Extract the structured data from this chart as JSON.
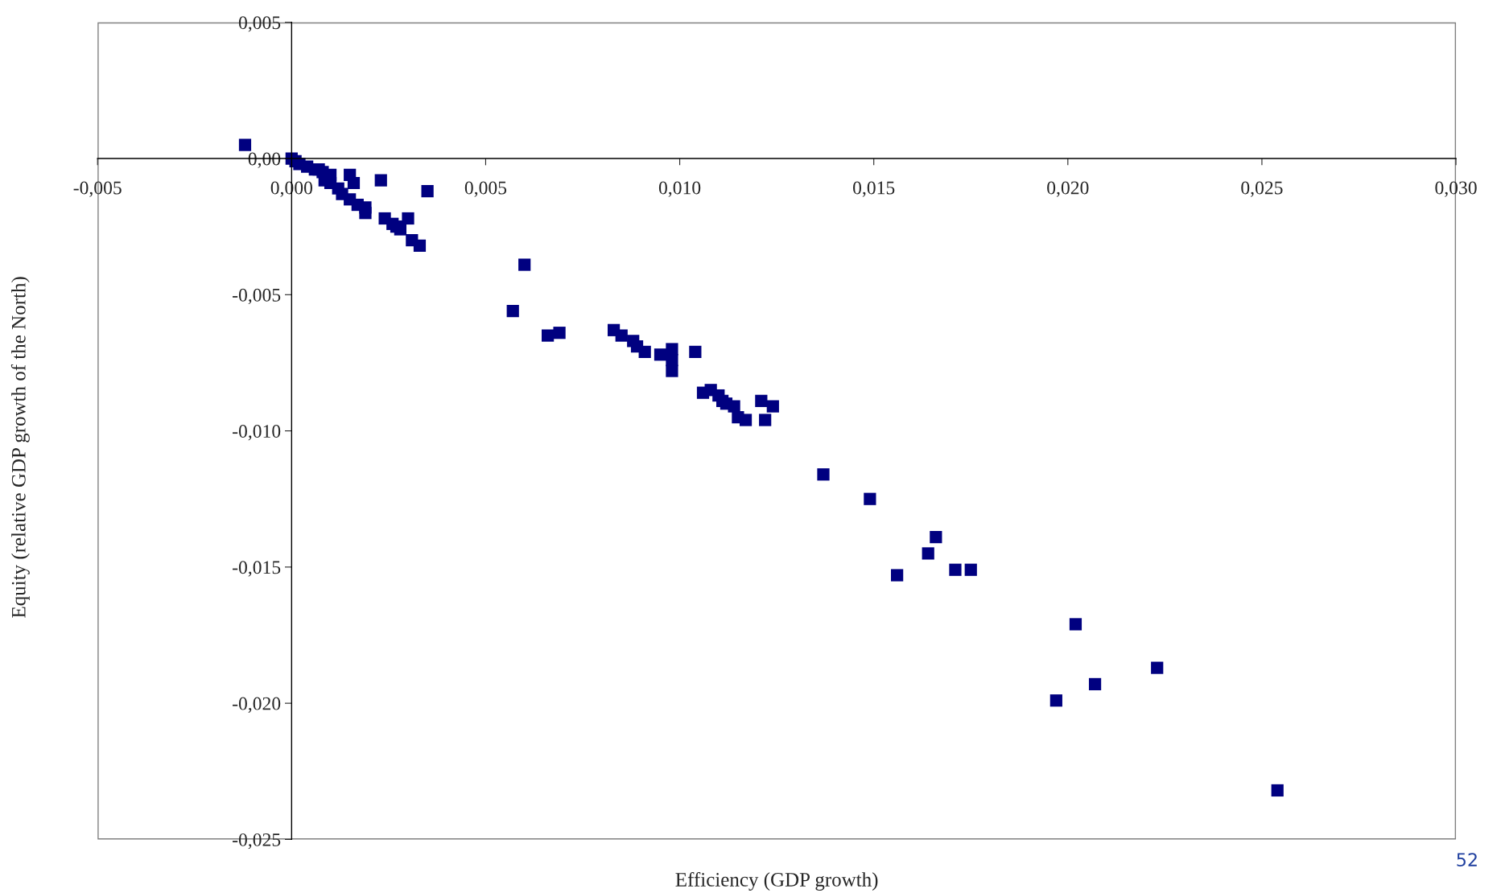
{
  "chart_data": {
    "type": "scatter",
    "xlabel": "Efficiency (GDP growth)",
    "ylabel": "Equity (relative GDP growth of the North)",
    "annotations": [
      "52"
    ],
    "marker": "square",
    "grid": false,
    "legend": false,
    "series": [
      {
        "color": "#000080",
        "x": [
          -0.0012,
          0.0,
          0.0001,
          0.0002,
          0.0004,
          0.0006,
          0.0007,
          0.0008,
          0.001,
          0.00085,
          0.001,
          0.0012,
          0.0013,
          0.0015,
          0.0016,
          0.0015,
          0.0017,
          0.0019,
          0.0019,
          0.0023,
          0.0024,
          0.0026,
          0.0027,
          0.0028,
          0.003,
          0.0031,
          0.0033,
          0.0035,
          0.006,
          0.0057,
          0.0066,
          0.0069,
          0.0083,
          0.0085,
          0.0088,
          0.0089,
          0.0091,
          0.0095,
          0.0098,
          0.0098,
          0.0098,
          0.0104,
          0.0106,
          0.0108,
          0.011,
          0.0111,
          0.0112,
          0.0114,
          0.0115,
          0.0117,
          0.0121,
          0.0122,
          0.0124,
          0.0137,
          0.0149,
          0.0156,
          0.0164,
          0.0166,
          0.0171,
          0.0175,
          0.0197,
          0.0202,
          0.0207,
          0.0223,
          0.0254
        ],
        "values": [
          0.0005,
          0.0,
          -0.0001,
          -0.0002,
          -0.0003,
          -0.0004,
          -0.0004,
          -0.0005,
          -0.0006,
          -0.0008,
          -0.0009,
          -0.0011,
          -0.0013,
          -0.0006,
          -0.0009,
          -0.0015,
          -0.0017,
          -0.0018,
          -0.002,
          -0.0008,
          -0.0022,
          -0.0024,
          -0.0025,
          -0.0026,
          -0.0022,
          -0.003,
          -0.0032,
          -0.0012,
          -0.0039,
          -0.0056,
          -0.0065,
          -0.0064,
          -0.0063,
          -0.0065,
          -0.0067,
          -0.0069,
          -0.0071,
          -0.0072,
          -0.007,
          -0.0074,
          -0.0078,
          -0.0071,
          -0.0086,
          -0.0085,
          -0.0087,
          -0.0089,
          -0.009,
          -0.0091,
          -0.0095,
          -0.0096,
          -0.0089,
          -0.0096,
          -0.0091,
          -0.0116,
          -0.0125,
          -0.0153,
          -0.0145,
          -0.0139,
          -0.0151,
          -0.0151,
          -0.0199,
          -0.0171,
          -0.0193,
          -0.0187,
          -0.0232
        ]
      }
    ],
    "xlim": [
      -0.005,
      0.03
    ],
    "xticks": [
      {
        "value": -0.005,
        "label": "-0,005"
      },
      {
        "value": 0.0,
        "label": "0,000"
      },
      {
        "value": 0.005,
        "label": "0,005"
      },
      {
        "value": 0.01,
        "label": "0,010"
      },
      {
        "value": 0.015,
        "label": "0,015"
      },
      {
        "value": 0.02,
        "label": "0,020"
      },
      {
        "value": 0.025,
        "label": "0,025"
      },
      {
        "value": 0.03,
        "label": "0,030"
      }
    ],
    "ylim": [
      -0.025,
      0.005
    ],
    "yticks": [
      {
        "value": 0.005,
        "label": "0,005"
      },
      {
        "value": 0.0,
        "label": "0,00"
      },
      {
        "value": -0.005,
        "label": "-0,005"
      },
      {
        "value": -0.01,
        "label": "-0,010"
      },
      {
        "value": -0.015,
        "label": "-0,015"
      },
      {
        "value": -0.02,
        "label": "-0,020"
      },
      {
        "value": -0.025,
        "label": "-0,025"
      }
    ]
  }
}
